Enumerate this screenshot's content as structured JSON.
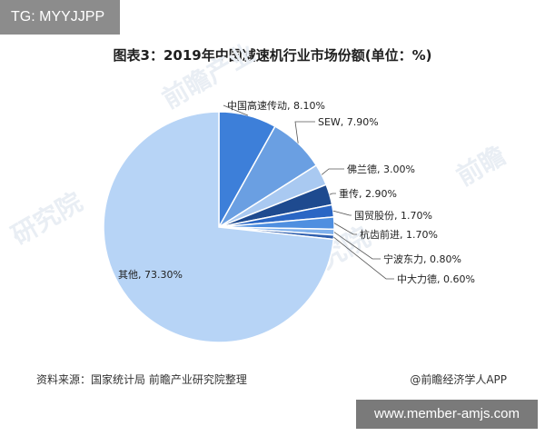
{
  "header": {
    "tag": "TG: MYYJJPP"
  },
  "footer": {
    "source": "资料来源：国家统计局 前瞻产业研究院整理",
    "brand": "@前瞻经济学人APP",
    "url": "www.member-amjs.com"
  },
  "chart_data": {
    "type": "pie",
    "title": "图表3：2019年中国减速机行业市场份额(单位：%)",
    "unit": "%",
    "slices": [
      {
        "name": "中国高速传动",
        "value": 8.1,
        "label": "中国高速传动, 8.10%",
        "color": "#3d7fd9"
      },
      {
        "name": "SEW",
        "value": 7.9,
        "label": "SEW, 7.90%",
        "color": "#6a9fe2"
      },
      {
        "name": "佛兰德",
        "value": 3.0,
        "label": "佛兰德, 3.00%",
        "color": "#a9c9f1"
      },
      {
        "name": "重传",
        "value": 2.9,
        "label": "重传, 2.90%",
        "color": "#1e4a8f"
      },
      {
        "name": "国贸股份",
        "value": 1.7,
        "label": "国贸股份, 1.70%",
        "color": "#2a66c4"
      },
      {
        "name": "杭齿前进",
        "value": 1.7,
        "label": "杭齿前进, 1.70%",
        "color": "#4f8fe0"
      },
      {
        "name": "宁波东力",
        "value": 0.8,
        "label": "宁波东力, 0.80%",
        "color": "#7fb0ec"
      },
      {
        "name": "中大力德",
        "value": 0.6,
        "label": "中大力德, 0.60%",
        "color": "#2f5fae"
      },
      {
        "name": "其他",
        "value": 73.3,
        "label": "其他, 73.30%",
        "color": "#b7d4f6"
      }
    ]
  }
}
